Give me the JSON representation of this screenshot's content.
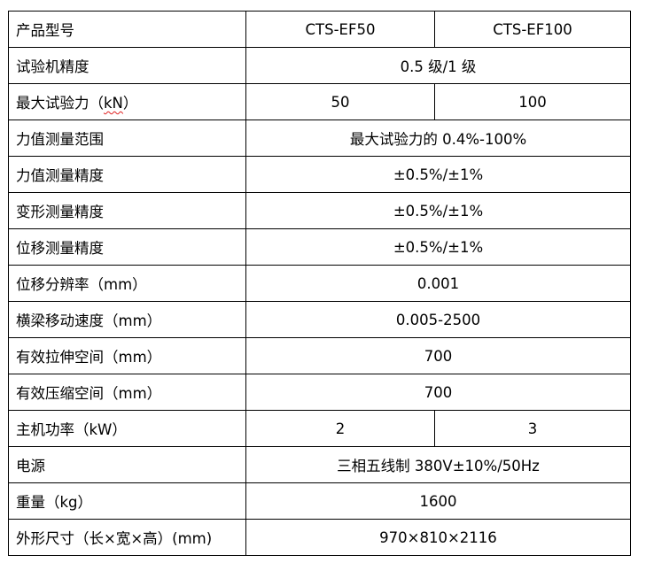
{
  "rows": [
    {
      "label": "产品型号",
      "values": [
        "CTS-EF50",
        "CTS-EF100"
      ]
    },
    {
      "label": "试验机精度",
      "values": [
        "0.5 级/1 级"
      ]
    },
    {
      "label_pre": "最大试验力（",
      "label_unit": "kN",
      "label_post": "）",
      "values": [
        "50",
        "100"
      ]
    },
    {
      "label": "力值测量范围",
      "values": [
        "最大试验力的 0.4%-100%"
      ]
    },
    {
      "label": "力值测量精度",
      "values": [
        "±0.5%/±1%"
      ]
    },
    {
      "label": "变形测量精度",
      "values": [
        "±0.5%/±1%"
      ]
    },
    {
      "label": "位移测量精度",
      "values": [
        "±0.5%/±1%"
      ]
    },
    {
      "label": "位移分辨率（mm）",
      "values": [
        "0.001"
      ]
    },
    {
      "label": "横梁移动速度（mm）",
      "values": [
        "0.005-2500"
      ]
    },
    {
      "label": "有效拉伸空间（mm）",
      "values": [
        "700"
      ]
    },
    {
      "label": "有效压缩空间（mm）",
      "values": [
        "700"
      ]
    },
    {
      "label": "主机功率（kW）",
      "values": [
        "2",
        "3"
      ]
    },
    {
      "label": "电源",
      "values": [
        "三相五线制 380V±10%/50Hz"
      ]
    },
    {
      "label": "重量（kg）",
      "values": [
        "1600"
      ]
    },
    {
      "label": "外形尺寸（长×宽×高）(mm)",
      "values": [
        "970×810×2116"
      ]
    }
  ],
  "colors": {
    "border": "#000000",
    "spellcheck_underline": "#e02020"
  }
}
